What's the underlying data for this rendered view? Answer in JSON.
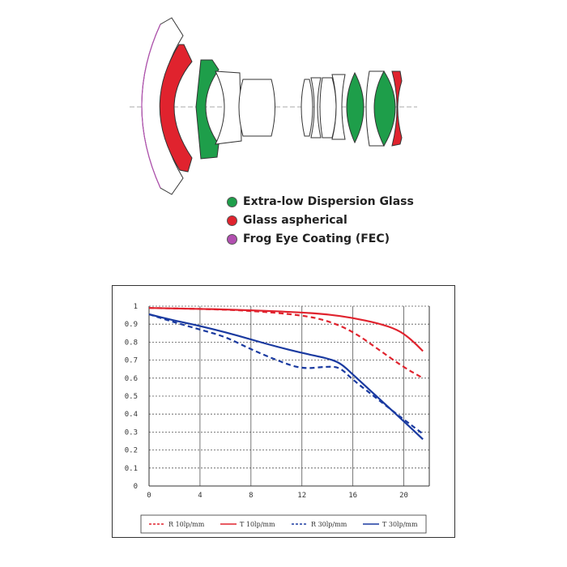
{
  "lens_legend": [
    {
      "label": "Extra-low Dispersion Glass",
      "color": "#1e9e4a"
    },
    {
      "label": "Glass aspherical",
      "color": "#e0232e"
    },
    {
      "label": "Frog Eye Coating (FEC)",
      "color": "#b24fb0"
    }
  ],
  "chart_data": {
    "type": "line",
    "xlim": [
      0,
      22
    ],
    "ylim": [
      0,
      1
    ],
    "xticks": [
      "0",
      "4",
      "8",
      "12",
      "16",
      "20"
    ],
    "yticks": [
      "1",
      "0.9",
      "0.8",
      "0.7",
      "0.6",
      "0.5",
      "0.4",
      "0.3",
      "0.2",
      "0.1",
      "0"
    ],
    "grid": true,
    "legend_position": "bottom",
    "series": [
      {
        "name": "R 10lp/mm",
        "color": "#e0232e",
        "dash": true,
        "x": [
          0,
          4,
          8,
          12,
          14,
          16,
          18,
          20,
          21.5
        ],
        "y": [
          0.99,
          0.985,
          0.975,
          0.95,
          0.92,
          0.86,
          0.76,
          0.66,
          0.6
        ]
      },
      {
        "name": "T 10lp/mm",
        "color": "#e0232e",
        "dash": false,
        "x": [
          0,
          4,
          8,
          12,
          14,
          16,
          18,
          19.5,
          20.5,
          21.5
        ],
        "y": [
          0.99,
          0.985,
          0.978,
          0.965,
          0.955,
          0.935,
          0.905,
          0.87,
          0.82,
          0.75
        ]
      },
      {
        "name": "R 30lp/mm",
        "color": "#1a3aa0",
        "dash": true,
        "x": [
          0,
          2,
          4,
          6,
          8,
          10,
          12,
          14,
          15,
          16,
          18,
          20,
          21.5
        ],
        "y": [
          0.955,
          0.91,
          0.87,
          0.83,
          0.76,
          0.7,
          0.65,
          0.665,
          0.66,
          0.59,
          0.48,
          0.37,
          0.29
        ]
      },
      {
        "name": "T 30lp/mm",
        "color": "#1a3aa0",
        "dash": false,
        "x": [
          0,
          2,
          4,
          6,
          8,
          10,
          12,
          14,
          15,
          16,
          18,
          20,
          21.5
        ],
        "y": [
          0.955,
          0.92,
          0.89,
          0.855,
          0.815,
          0.775,
          0.74,
          0.71,
          0.685,
          0.62,
          0.49,
          0.36,
          0.26
        ]
      }
    ]
  }
}
